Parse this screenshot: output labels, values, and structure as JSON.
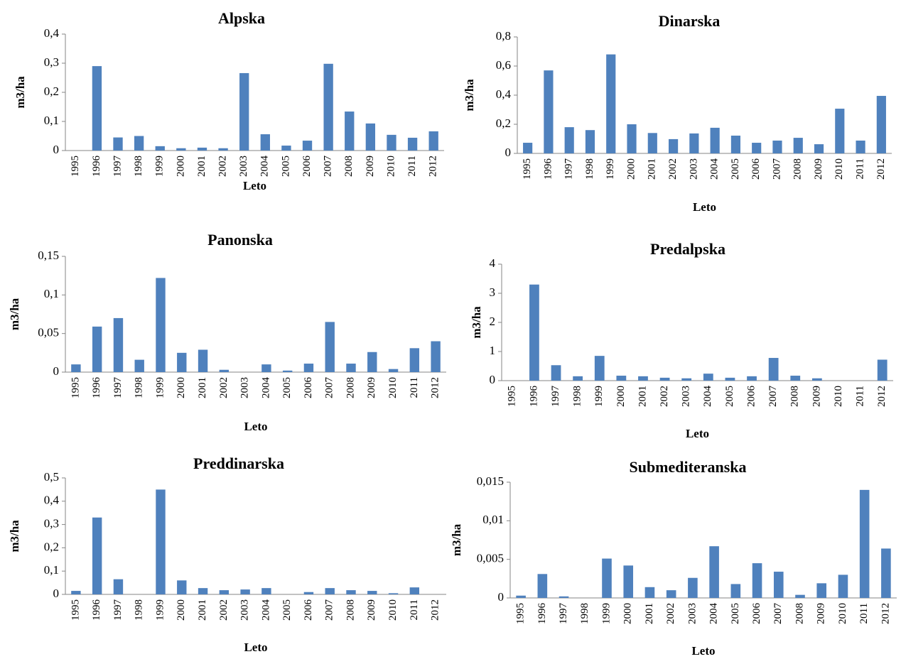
{
  "chart_data": [
    {
      "type": "bar",
      "title": "Alpska",
      "x_label": "Leto",
      "y_label": "m3/ha",
      "color": "#4f81bd",
      "categories": [
        "1995",
        "1996",
        "1997",
        "1998",
        "1999",
        "2000",
        "2001",
        "2002",
        "2003",
        "2004",
        "2005",
        "2006",
        "2007",
        "2008",
        "2009",
        "2010",
        "2011",
        "2012"
      ],
      "values": [
        0,
        0.29,
        0.045,
        0.05,
        0.015,
        0.008,
        0.01,
        0.008,
        0.266,
        0.056,
        0.017,
        0.034,
        0.298,
        0.134,
        0.093,
        0.054,
        0.044,
        0.066
      ],
      "ylim": [
        0,
        0.4
      ],
      "yticks": [
        0,
        {
          "value": 0.1,
          "label": "0,1"
        },
        {
          "value": 0.2,
          "label": "0,2"
        },
        {
          "value": 0.3,
          "label": "0,3"
        },
        {
          "value": 0.4,
          "label": "0,4"
        }
      ]
    },
    {
      "type": "bar",
      "title": "Dinarska",
      "x_label": "Leto",
      "y_label": "m3/ha",
      "color": "#4f81bd",
      "categories": [
        "1995",
        "1996",
        "1997",
        "1998",
        "1999",
        "2000",
        "2001",
        "2002",
        "2003",
        "2004",
        "2005",
        "2006",
        "2007",
        "2008",
        "2009",
        "2010",
        "2011",
        "2012"
      ],
      "values": [
        0.073,
        0.57,
        0.18,
        0.16,
        0.68,
        0.2,
        0.14,
        0.098,
        0.137,
        0.176,
        0.122,
        0.073,
        0.088,
        0.107,
        0.063,
        0.307,
        0.088,
        0.395
      ],
      "ylim": [
        0,
        0.8
      ],
      "yticks": [
        0,
        {
          "value": 0.2,
          "label": "0,2"
        },
        {
          "value": 0.4,
          "label": "0,4"
        },
        {
          "value": 0.6,
          "label": "0,6"
        },
        {
          "value": 0.8,
          "label": "0,8"
        }
      ]
    },
    {
      "type": "bar",
      "title": "Panonska",
      "x_label": "Leto",
      "y_label": "m3/ha",
      "color": "#4f81bd",
      "categories": [
        "1995",
        "1996",
        "1997",
        "1998",
        "1999",
        "2000",
        "2001",
        "2002",
        "2003",
        "2004",
        "2005",
        "2006",
        "2007",
        "2008",
        "2009",
        "2010",
        "2011",
        "2012"
      ],
      "values": [
        0.01,
        0.059,
        0.07,
        0.016,
        0.122,
        0.025,
        0.029,
        0.003,
        0,
        0.01,
        0.002,
        0.011,
        0.065,
        0.011,
        0.026,
        0.004,
        0.031,
        0.04
      ],
      "ylim": [
        0,
        0.15
      ],
      "yticks": [
        0,
        {
          "value": 0.05,
          "label": "0,05"
        },
        {
          "value": 0.1,
          "label": "0,1"
        },
        {
          "value": 0.15,
          "label": "0,15"
        }
      ]
    },
    {
      "type": "bar",
      "title": "Predalpska",
      "x_label": "Leto",
      "y_label": "m3/ha",
      "color": "#4f81bd",
      "categories": [
        "1995",
        "1996",
        "1997",
        "1998",
        "1999",
        "2000",
        "2001",
        "2002",
        "2003",
        "2004",
        "2005",
        "2006",
        "2007",
        "2008",
        "2009",
        "2010",
        "2011",
        "2012"
      ],
      "values": [
        0,
        3.3,
        0.53,
        0.15,
        0.85,
        0.17,
        0.15,
        0.1,
        0.08,
        0.24,
        0.1,
        0.15,
        0.78,
        0.17,
        0.08,
        0,
        0,
        0.72
      ],
      "ylim": [
        0,
        4
      ],
      "yticks": [
        0,
        1,
        2,
        3,
        4
      ]
    },
    {
      "type": "bar",
      "title": "Preddinarska",
      "x_label": "Leto",
      "y_label": "m3/ha",
      "color": "#4f81bd",
      "categories": [
        "1995",
        "1996",
        "1997",
        "1998",
        "1999",
        "2000",
        "2001",
        "2002",
        "2003",
        "2004",
        "2005",
        "2006",
        "2007",
        "2008",
        "2009",
        "2010",
        "2011",
        "2012"
      ],
      "values": [
        0.015,
        0.33,
        0.065,
        0,
        0.45,
        0.06,
        0.027,
        0.018,
        0.021,
        0.027,
        0,
        0.01,
        0.027,
        0.018,
        0.015,
        0.005,
        0.03,
        0
      ],
      "ylim": [
        0,
        0.5
      ],
      "yticks": [
        0,
        {
          "value": 0.1,
          "label": "0,1"
        },
        {
          "value": 0.2,
          "label": "0,2"
        },
        {
          "value": 0.3,
          "label": "0,3"
        },
        {
          "value": 0.4,
          "label": "0,4"
        },
        {
          "value": 0.5,
          "label": "0,5"
        }
      ]
    },
    {
      "type": "bar",
      "title": "Submediteranska",
      "x_label": "Leto",
      "y_label": "m3/ha",
      "color": "#4f81bd",
      "categories": [
        "1995",
        "1996",
        "1997",
        "1998",
        "1999",
        "2000",
        "2001",
        "2002",
        "2003",
        "2004",
        "2005",
        "2006",
        "2007",
        "2008",
        "2009",
        "2010",
        "2011",
        "2012"
      ],
      "values": [
        0.0003,
        0.0031,
        0.0002,
        0,
        0.0051,
        0.0042,
        0.0014,
        0.001,
        0.0026,
        0.0067,
        0.0018,
        0.0045,
        0.0034,
        0.0004,
        0.0019,
        0.003,
        0.014,
        0.0064
      ],
      "ylim": [
        0,
        0.015
      ],
      "yticks": [
        0,
        {
          "value": 0.005,
          "label": "0,005"
        },
        {
          "value": 0.01,
          "label": "0,01"
        },
        {
          "value": 0.015,
          "label": "0,015"
        }
      ]
    }
  ]
}
